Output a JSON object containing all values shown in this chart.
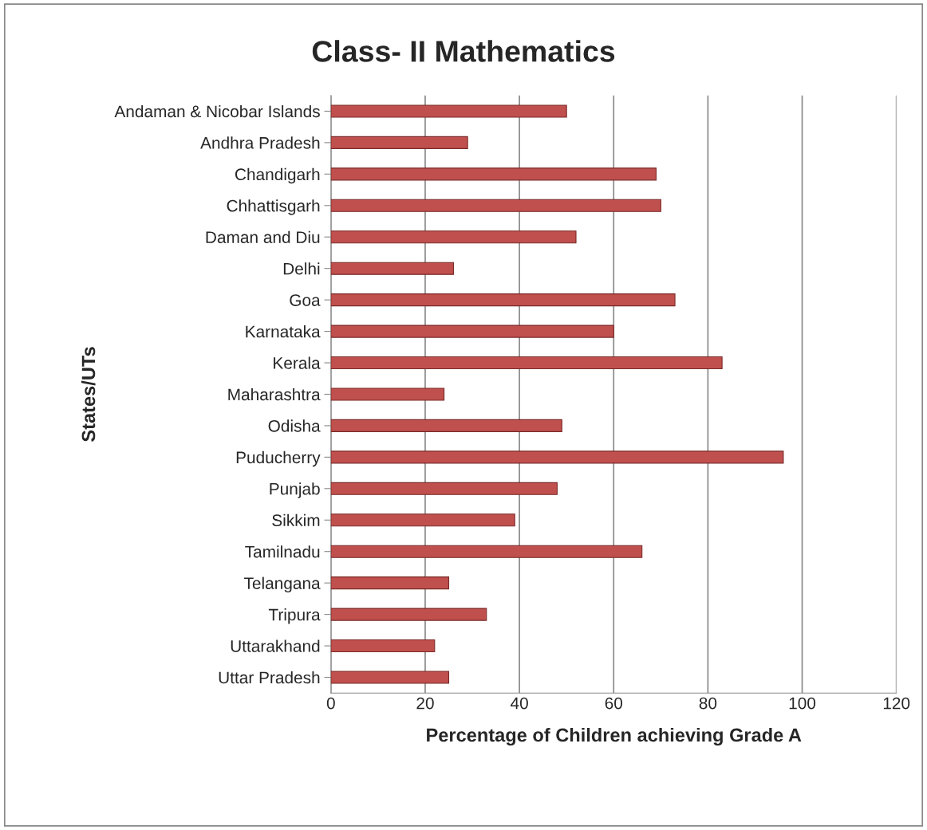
{
  "chart_data": {
    "type": "bar",
    "orientation": "horizontal",
    "title": "Class- II Mathematics",
    "xlabel": "Percentage of Children achieving Grade A",
    "ylabel": "States/UTs",
    "categories": [
      "Andaman & Nicobar Islands",
      "Andhra Pradesh",
      "Chandigarh",
      "Chhattisgarh",
      "Daman and Diu",
      "Delhi",
      "Goa",
      "Karnataka",
      "Kerala",
      "Maharashtra",
      "Odisha",
      "Puducherry",
      "Punjab",
      "Sikkim",
      "Tamilnadu",
      "Telangana",
      "Tripura",
      "Uttarakhand",
      "Uttar Pradesh"
    ],
    "values": [
      50,
      29,
      69,
      70,
      52,
      26,
      73,
      60,
      83,
      24,
      49,
      96,
      48,
      39,
      66,
      25,
      33,
      22,
      25
    ],
    "color": "#c0504d",
    "xlim": [
      0,
      120
    ],
    "xticks": [
      0,
      20,
      40,
      60,
      80,
      100,
      120
    ],
    "grid": "x",
    "legend": false
  }
}
